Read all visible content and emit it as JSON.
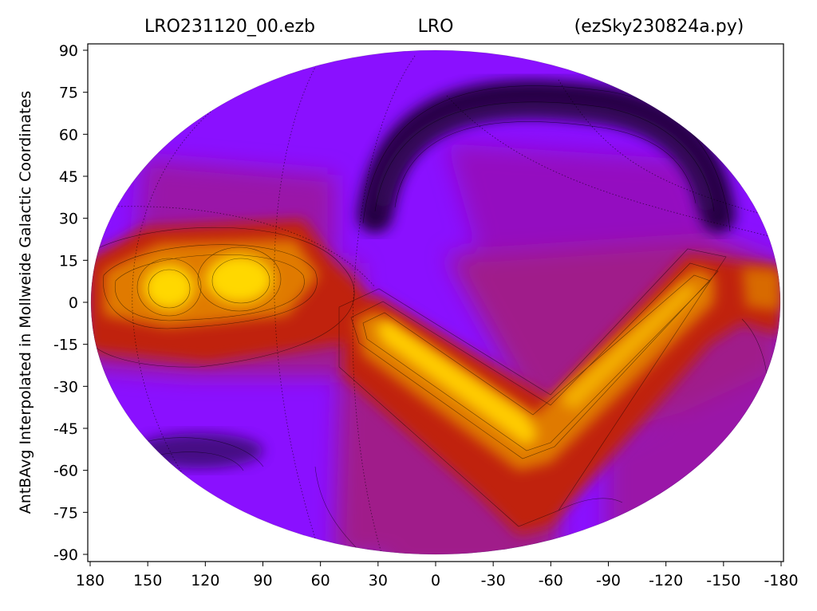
{
  "chart_data": {
    "type": "heatmap",
    "projection": "mollweide",
    "colormap": "gnuplot (purple-red-orange-yellow)",
    "title_left": "LRO231120_00.ezb",
    "title_center": "LRO",
    "title_right": "(ezSky230824a.py)",
    "ylabel": "AntBAvg Interpolated in Mollweide Galactic Coordinates",
    "xlabel": "",
    "xlim": [
      180,
      -180
    ],
    "ylim": [
      -90,
      90
    ],
    "x_ticks": [
      "180",
      "150",
      "120",
      "90",
      "60",
      "30",
      "0",
      "-30",
      "-60",
      "-90",
      "-120",
      "-150",
      "-180"
    ],
    "x_tick_values": [
      180,
      150,
      120,
      90,
      60,
      30,
      0,
      -30,
      -60,
      -90,
      -120,
      -150,
      -180
    ],
    "y_ticks": [
      "90",
      "75",
      "60",
      "45",
      "30",
      "15",
      "0",
      "-15",
      "-30",
      "-45",
      "-60",
      "-75",
      "-90"
    ],
    "y_tick_values": [
      90,
      75,
      60,
      45,
      30,
      15,
      0,
      -15,
      -30,
      -45,
      -60,
      -75,
      -90
    ],
    "colors": {
      "low": "#1a0030",
      "background": "#8a10ff",
      "mid": "#a01a8a",
      "high_red": "#c02008",
      "high_orange": "#e07a00",
      "peak": "#ffd800"
    }
  }
}
